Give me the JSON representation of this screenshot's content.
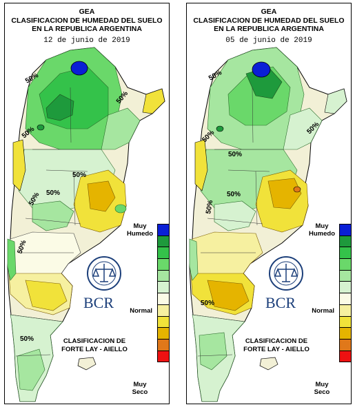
{
  "panels": [
    {
      "org": "GEA",
      "title_line1": "CLASIFICACION DE HUMEDAD DEL SUELO",
      "title_line2": "EN LA REPUBLICA ARGENTINA",
      "date": "12 de junio de 2019",
      "contour_labels": [
        "50%",
        "50%",
        "50%",
        "50%",
        "50%",
        "50%",
        "50%",
        "50%"
      ]
    },
    {
      "org": "GEA",
      "title_line1": "CLASIFICACION DE HUMEDAD DEL SUELO",
      "title_line2": "EN LA REPUBLICA ARGENTINA",
      "date": "05 de junio de 2019",
      "contour_labels": [
        "50%",
        "50%",
        "50%",
        "50%",
        "50%",
        "50%",
        "50%"
      ]
    }
  ],
  "legend": {
    "wet_line1": "Muy",
    "wet_line2": "Humedo",
    "normal": "Normal",
    "dry_line1": "Muy",
    "dry_line2": "Seco",
    "classification_line1": "CLASIFICACION DE",
    "classification_line2": "FORTE LAY - AIELLO",
    "colors": [
      "#0a1fd6",
      "#1e9a3c",
      "#34c24a",
      "#6ad86a",
      "#a6e6a0",
      "#d6f2d0",
      "#fbfbe6",
      "#f6f0a0",
      "#f1e23a",
      "#e5b400",
      "#e0781a",
      "#ee1111"
    ]
  },
  "logo": {
    "text": "BCR",
    "seal_text": "BOLSA DE COMERCIO DE ROSARIO",
    "color": "#1c3f7a"
  }
}
